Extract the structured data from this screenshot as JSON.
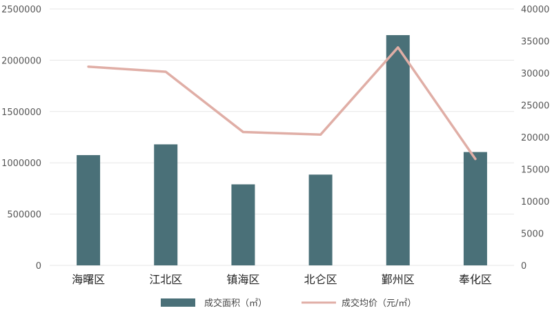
{
  "chart_data": {
    "type": "bar",
    "categories": [
      "海曙区",
      "江北区",
      "镇海区",
      "北仑区",
      "鄞州区",
      "奉化区"
    ],
    "series": [
      {
        "name": "成交面积（㎡）",
        "type": "bar",
        "axis": "left",
        "values": [
          1075000,
          1180000,
          790000,
          885000,
          2245000,
          1105000
        ]
      },
      {
        "name": "成交均价（元/㎡）",
        "type": "line",
        "axis": "right",
        "values": [
          31000,
          30200,
          20800,
          20400,
          34000,
          16600
        ]
      }
    ],
    "y_left": {
      "ylim": [
        0,
        2500000
      ],
      "ticks": [
        0,
        500000,
        1000000,
        1500000,
        2000000,
        2500000
      ]
    },
    "y_right": {
      "ylim": [
        0,
        40000
      ],
      "ticks": [
        0,
        5000,
        10000,
        15000,
        20000,
        25000,
        30000,
        35000,
        40000
      ]
    },
    "grid": true,
    "legend_position": "bottom",
    "colors": {
      "bar": "#4a7078",
      "line": "#e0aea6",
      "grid": "#e6e6e6"
    }
  }
}
